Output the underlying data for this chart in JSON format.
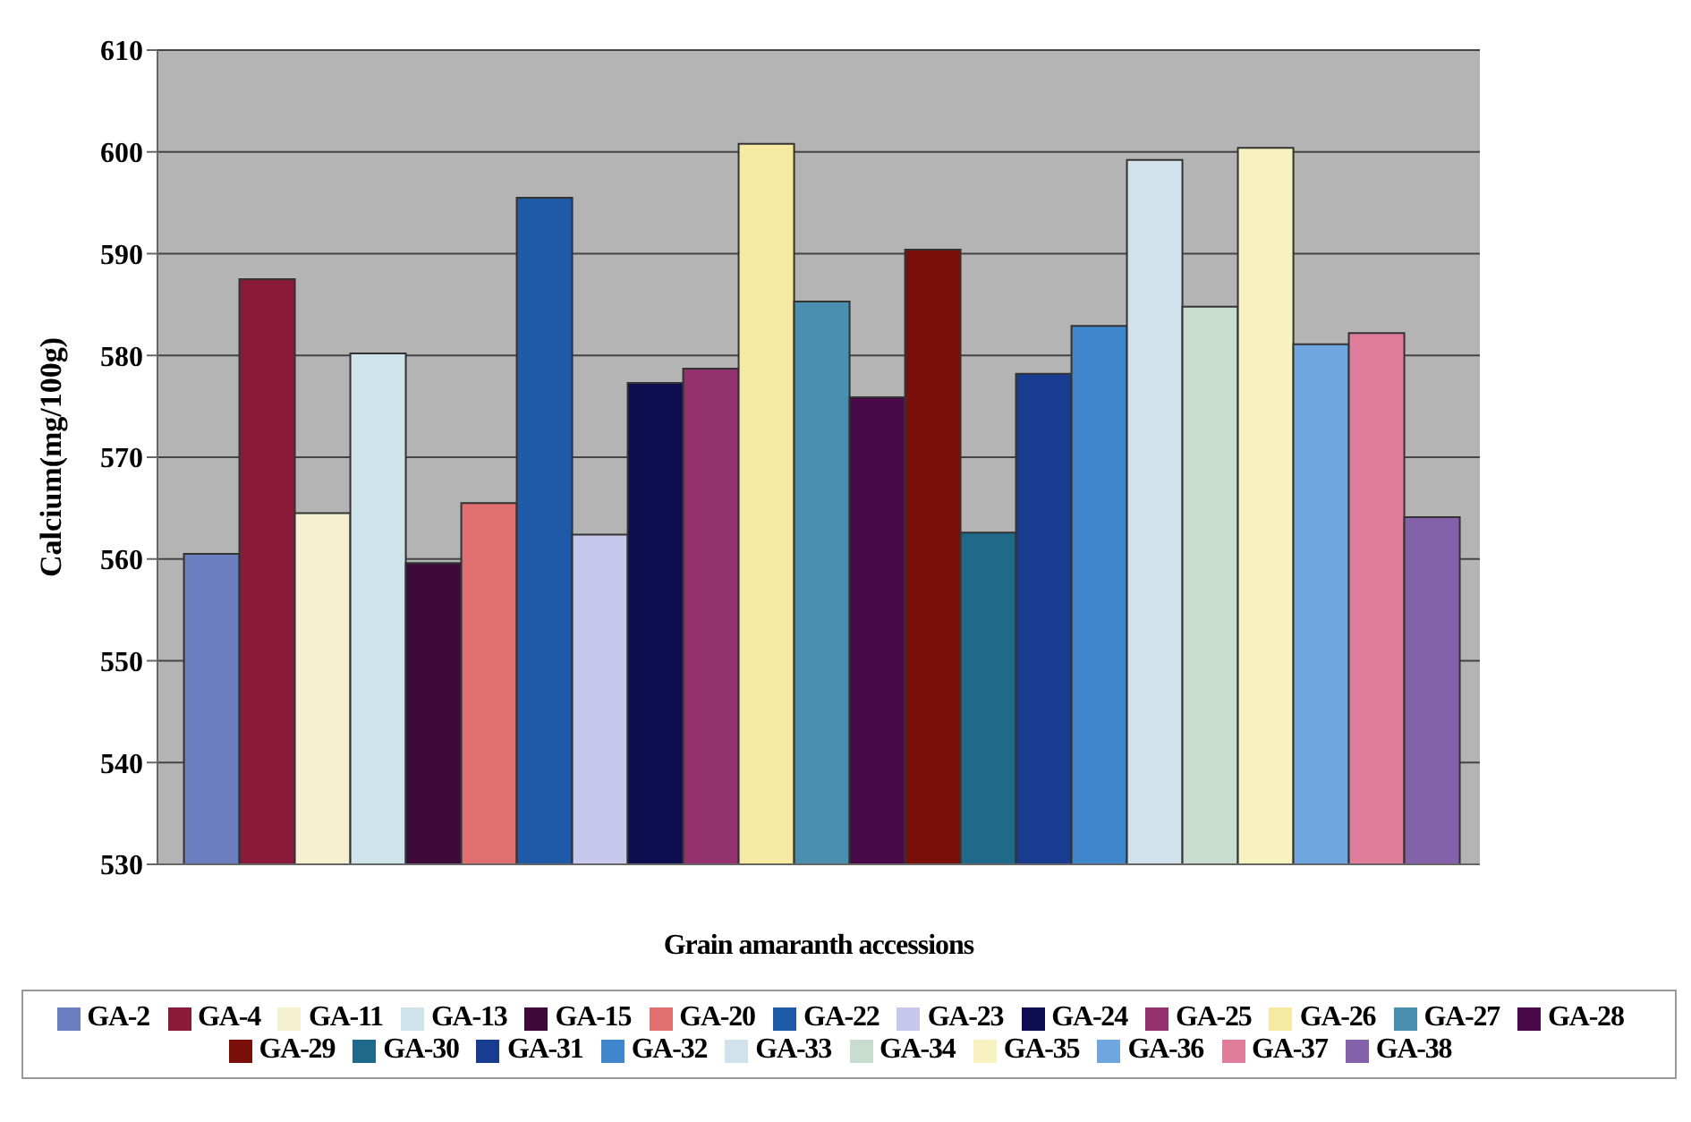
{
  "chart_data": {
    "type": "bar",
    "xlabel": "Grain amaranth accessions",
    "ylabel": "Calcium(mg/100g)",
    "categories": [
      null
    ],
    "series": [
      {
        "name": "GA-2",
        "color": "#6b7fc0",
        "values": [
          560.5
        ]
      },
      {
        "name": "GA-4",
        "color": "#8b1a3a",
        "values": [
          587.5
        ]
      },
      {
        "name": "GA-11",
        "color": "#f5f0d0",
        "values": [
          564.5
        ]
      },
      {
        "name": "GA-13",
        "color": "#cfe3ea",
        "values": [
          580.2
        ]
      },
      {
        "name": "GA-15",
        "color": "#3d0a3a",
        "values": [
          559.6
        ]
      },
      {
        "name": "GA-20",
        "color": "#e07070",
        "values": [
          565.5
        ]
      },
      {
        "name": "GA-22",
        "color": "#1f5aa8",
        "values": [
          595.5
        ]
      },
      {
        "name": "GA-23",
        "color": "#c8c8ec",
        "values": [
          562.4
        ]
      },
      {
        "name": "GA-24",
        "color": "#0d0d50",
        "values": [
          577.3
        ]
      },
      {
        "name": "GA-25",
        "color": "#93326e",
        "values": [
          578.7
        ]
      },
      {
        "name": "GA-26",
        "color": "#f6eaa2",
        "values": [
          600.8
        ]
      },
      {
        "name": "GA-27",
        "color": "#4a8fb0",
        "values": [
          585.3
        ]
      },
      {
        "name": "GA-28",
        "color": "#4a0a4a",
        "values": [
          575.9
        ]
      },
      {
        "name": "GA-29",
        "color": "#7a0f0a",
        "values": [
          590.4
        ]
      },
      {
        "name": "GA-30",
        "color": "#1f6a8a",
        "values": [
          562.6
        ]
      },
      {
        "name": "GA-31",
        "color": "#183c90",
        "values": [
          578.2
        ]
      },
      {
        "name": "GA-32",
        "color": "#3f86cc",
        "values": [
          582.9
        ]
      },
      {
        "name": "GA-33",
        "color": "#d2e2ec",
        "values": [
          599.2
        ]
      },
      {
        "name": "GA-34",
        "color": "#c8dccf",
        "values": [
          584.8
        ]
      },
      {
        "name": "GA-35",
        "color": "#f8f2c0",
        "values": [
          600.4
        ]
      },
      {
        "name": "GA-36",
        "color": "#6fa6e0",
        "values": [
          581.1
        ]
      },
      {
        "name": "GA-37",
        "color": "#e07d9a",
        "values": [
          582.2
        ]
      },
      {
        "name": "GA-38",
        "color": "#8462aa",
        "values": [
          564.1
        ]
      }
    ],
    "ylim": [
      530,
      610
    ],
    "yticks": [
      530,
      540,
      550,
      560,
      570,
      580,
      590,
      600,
      610
    ],
    "grid": "y",
    "legend": "bottom"
  }
}
